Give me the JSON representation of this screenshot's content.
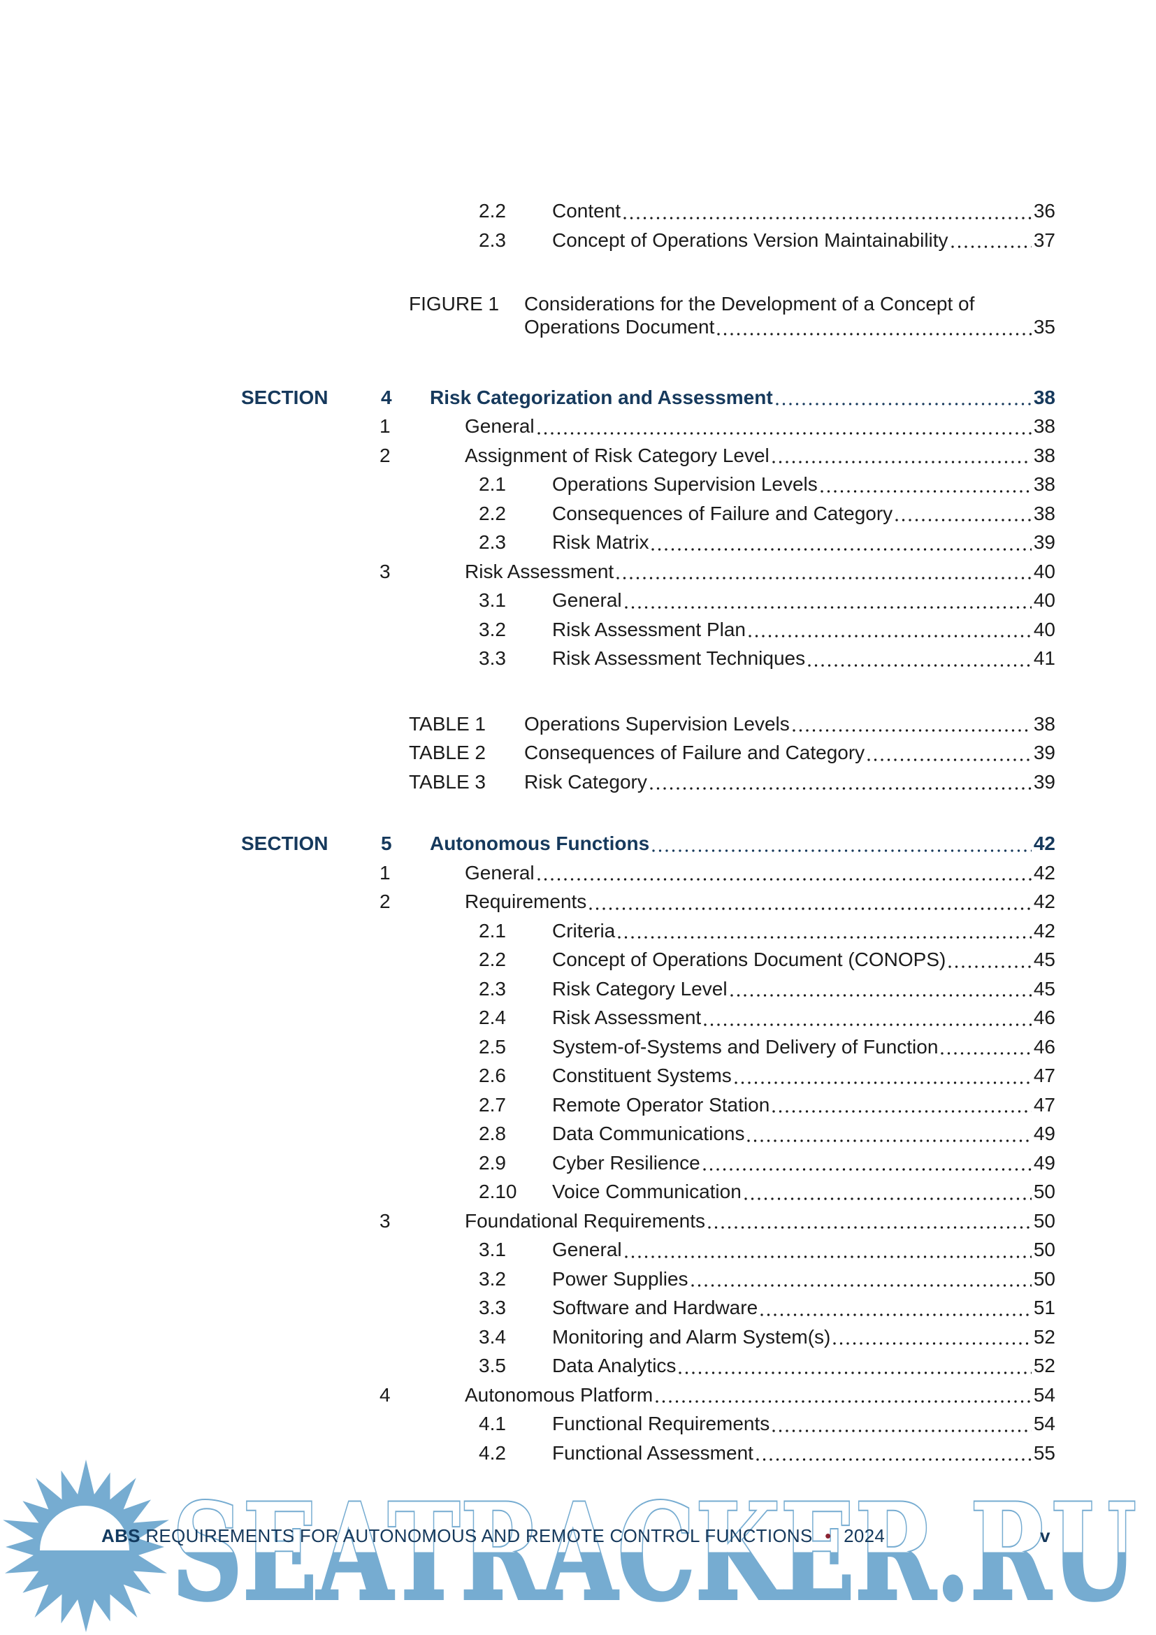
{
  "page": {
    "footer": {
      "brand": "ABS",
      "title": "REQUIREMENTS FOR AUTONOMOUS AND REMOTE CONTROL FUNCTIONS",
      "separator": "•",
      "year": "2024",
      "page_number": "v"
    },
    "watermark": {
      "text": "SEATRACKER.RU",
      "color": "#76acd1"
    },
    "colors": {
      "accent_navy": "#16395c",
      "body_text": "#1b1b1b",
      "bullet_red": "#8a2332",
      "watermark_blue": "#76acd1"
    }
  },
  "toc": {
    "blocks": [
      {
        "rows": [
          {
            "type": "l2",
            "num": "2.2",
            "title": "Content",
            "page": "36"
          },
          {
            "type": "l2",
            "num": "2.3",
            "title": "Concept of Operations Version Maintainability",
            "page": "37"
          }
        ]
      },
      {
        "rows": [
          {
            "type": "fig",
            "label": "FIGURE 1",
            "title": "Considerations for the Development of a Concept of",
            "title2": "Operations Document",
            "page": "35"
          }
        ]
      },
      {
        "rows": [
          {
            "type": "section",
            "label": "SECTION",
            "num": "4",
            "title": "Risk Categorization and Assessment",
            "page": "38"
          },
          {
            "type": "l1",
            "num": "1",
            "title": "General",
            "page": "38"
          },
          {
            "type": "l1",
            "num": "2",
            "title": "Assignment of Risk Category Level",
            "page": "38"
          },
          {
            "type": "l2",
            "num": "2.1",
            "title": "Operations Supervision Levels",
            "page": "38"
          },
          {
            "type": "l2",
            "num": "2.2",
            "title": "Consequences of Failure and Category",
            "page": "38"
          },
          {
            "type": "l2",
            "num": "2.3",
            "title": "Risk Matrix",
            "page": "39"
          },
          {
            "type": "l1",
            "num": "3",
            "title": "Risk Assessment",
            "page": "40"
          },
          {
            "type": "l2",
            "num": "3.1",
            "title": "General",
            "page": "40"
          },
          {
            "type": "l2",
            "num": "3.2",
            "title": "Risk Assessment Plan",
            "page": "40"
          },
          {
            "type": "l2",
            "num": "3.3",
            "title": "Risk Assessment Techniques",
            "page": "41"
          }
        ]
      },
      {
        "rows": [
          {
            "type": "tbl",
            "label": "TABLE 1",
            "title": "Operations Supervision Levels",
            "page": "38"
          },
          {
            "type": "tbl",
            "label": "TABLE 2",
            "title": "Consequences of Failure and Category",
            "page": "39"
          },
          {
            "type": "tbl",
            "label": "TABLE 3",
            "title": "Risk Category",
            "page": "39"
          }
        ]
      },
      {
        "rows": [
          {
            "type": "section",
            "label": "SECTION",
            "num": "5",
            "title": "Autonomous Functions",
            "page": "42"
          },
          {
            "type": "l1",
            "num": "1",
            "title": "General",
            "page": "42"
          },
          {
            "type": "l1",
            "num": "2",
            "title": "Requirements",
            "page": "42"
          },
          {
            "type": "l2",
            "num": "2.1",
            "title": "Criteria",
            "page": "42"
          },
          {
            "type": "l2",
            "num": "2.2",
            "title": "Concept of Operations Document (CONOPS)",
            "page": "45"
          },
          {
            "type": "l2",
            "num": "2.3",
            "title": "Risk Category Level",
            "page": "45"
          },
          {
            "type": "l2",
            "num": "2.4",
            "title": "Risk Assessment",
            "page": "46"
          },
          {
            "type": "l2",
            "num": "2.5",
            "title": "System-of-Systems and Delivery of Function",
            "page": "46"
          },
          {
            "type": "l2",
            "num": "2.6",
            "title": "Constituent Systems",
            "page": "47"
          },
          {
            "type": "l2",
            "num": "2.7",
            "title": "Remote Operator Station",
            "page": "47"
          },
          {
            "type": "l2",
            "num": "2.8",
            "title": "Data Communications",
            "page": "49"
          },
          {
            "type": "l2",
            "num": "2.9",
            "title": "Cyber Resilience",
            "page": "49"
          },
          {
            "type": "l2",
            "num": "2.10",
            "title": "Voice Communication",
            "page": "50"
          },
          {
            "type": "l1",
            "num": "3",
            "title": "Foundational Requirements",
            "page": "50"
          },
          {
            "type": "l2",
            "num": "3.1",
            "title": "General",
            "page": "50"
          },
          {
            "type": "l2",
            "num": "3.2",
            "title": "Power Supplies",
            "page": "50"
          },
          {
            "type": "l2",
            "num": "3.3",
            "title": "Software and Hardware",
            "page": "51"
          },
          {
            "type": "l2",
            "num": "3.4",
            "title": "Monitoring and Alarm System(s)",
            "page": "52"
          },
          {
            "type": "l2",
            "num": "3.5",
            "title": "Data Analytics",
            "page": "52"
          },
          {
            "type": "l1",
            "num": "4",
            "title": "Autonomous Platform",
            "page": "54"
          },
          {
            "type": "l2",
            "num": "4.1",
            "title": "Functional Requirements",
            "page": "54"
          },
          {
            "type": "l2",
            "num": "4.2",
            "title": "Functional Assessment",
            "page": "55"
          }
        ]
      }
    ]
  }
}
